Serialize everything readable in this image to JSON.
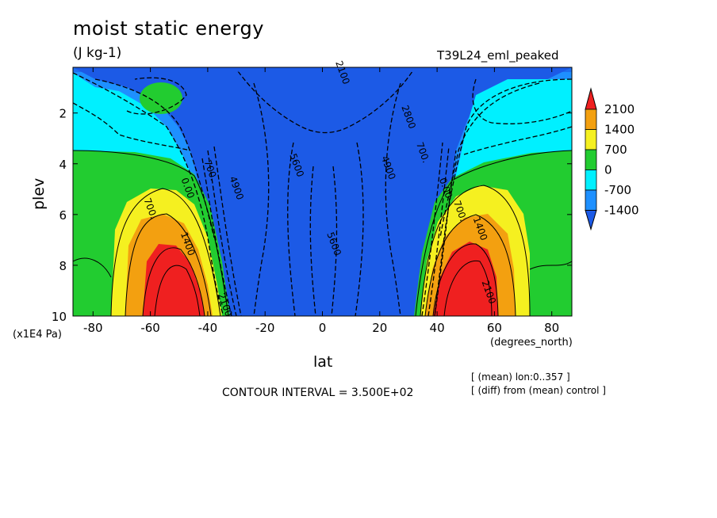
{
  "chart_data": {
    "type": "contour",
    "title": "moist static energy",
    "units": "(J kg-1)",
    "run_name": "T39L24_eml_peaked",
    "xlabel": "lat",
    "ylabel": "plev",
    "x_unit_note": "(degrees_north)",
    "y_unit_note": "(x1E4 Pa)",
    "xlim": [
      -87,
      87
    ],
    "ylim": [
      0.2,
      10
    ],
    "x_ticks": [
      -80,
      -60,
      -40,
      -20,
      0,
      20,
      40,
      60,
      80
    ],
    "y_ticks": [
      2,
      4,
      6,
      8,
      10
    ],
    "contour_interval_text": "CONTOUR INTERVAL = 3.500E+02",
    "notes": [
      "[ (mean) lon:0..357 ]",
      "[ (diff) from (mean) control ]"
    ],
    "colorbar": {
      "levels": [
        2100,
        1400,
        700,
        0,
        -700,
        -1400
      ],
      "colors": [
        "#ef2020",
        "#f3a010",
        "#f5f020",
        "#22cc30",
        "#00f0ff",
        "#1e90ff",
        "#1c5ae6"
      ]
    },
    "contour_labels": [
      {
        "text": "2100",
        "lat": 6,
        "plev": 0.45
      },
      {
        "text": "5600",
        "lat": -10,
        "plev": 4.1
      },
      {
        "text": "5600",
        "lat": 3,
        "plev": 7.2
      },
      {
        "text": "4900",
        "lat": -31,
        "plev": 5.0
      },
      {
        "text": "4900",
        "lat": 22,
        "plev": 4.2
      },
      {
        "text": "2800",
        "lat": 29,
        "plev": 2.2
      },
      {
        "text": "700.",
        "lat": 34,
        "plev": 3.6
      },
      {
        "text": "700.",
        "lat": -40,
        "plev": 4.3
      },
      {
        "text": "0.00",
        "lat": -48,
        "plev": 5.0
      },
      {
        "text": "0.00",
        "lat": 42,
        "plev": 5.0
      },
      {
        "text": "700.",
        "lat": -61,
        "plev": 5.8
      },
      {
        "text": "700.",
        "lat": 47,
        "plev": 5.9
      },
      {
        "text": "1400",
        "lat": -48,
        "plev": 7.2
      },
      {
        "text": "1400",
        "lat": 54,
        "plev": 6.6
      },
      {
        "text": "2100",
        "lat": -35,
        "plev": 9.6
      },
      {
        "text": "2100",
        "lat": 57,
        "plev": 9.1
      }
    ]
  }
}
